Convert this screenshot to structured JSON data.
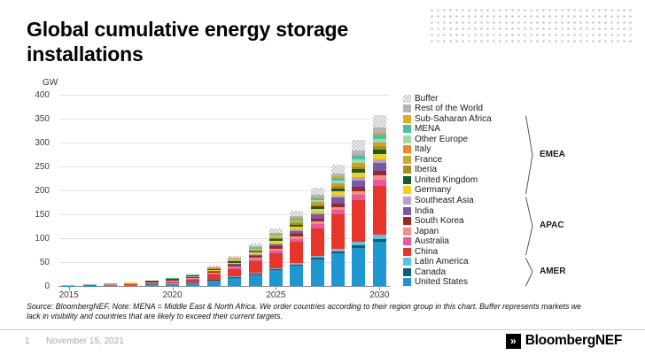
{
  "slide": {
    "title_line1": "Global cumulative energy storage",
    "title_line2": "installations",
    "source_line1": "Source: BloombergNEF. Note: MENA = Middle East & North Africa. We order countries according to their region group in this chart. Buffer represents markets we",
    "source_line2": "lack in visibility and countries that are likely to exceed their current targets.",
    "page_number": "1",
    "date": "November 15, 2021",
    "logo_mark": "»",
    "logo_text": "BloombergNEF"
  },
  "chart_data": {
    "type": "bar",
    "stacked": true,
    "title": "Global cumulative energy storage installations",
    "ylabel": "GW",
    "ylim": [
      0,
      400
    ],
    "yticks": [
      0,
      50,
      100,
      150,
      200,
      250,
      300,
      350,
      400
    ],
    "x": [
      2015,
      2016,
      2017,
      2018,
      2019,
      2020,
      2021,
      2022,
      2023,
      2024,
      2025,
      2026,
      2027,
      2028,
      2029,
      2030
    ],
    "xtick_labels": [
      "2015",
      "2020",
      "2025",
      "2030"
    ],
    "grid": true,
    "legend_position": "right",
    "region_groups": [
      "EMEA",
      "APAC",
      "AMER"
    ],
    "series": [
      {
        "name": "United States",
        "color": "#1e96d2",
        "region": "AMER",
        "values": [
          0.5,
          0.8,
          1.3,
          2,
          3,
          4.5,
          7.5,
          12,
          17.5,
          25,
          33,
          43,
          56,
          68,
          80,
          92
        ]
      },
      {
        "name": "Canada",
        "color": "#0e5d74",
        "region": "AMER",
        "values": [
          0,
          0,
          0.05,
          0.05,
          0.1,
          0.15,
          0.25,
          0.45,
          0.7,
          1,
          1.4,
          2,
          2.7,
          3.7,
          4.8,
          6
        ]
      },
      {
        "name": "Latin America",
        "color": "#57c4e8",
        "region": "AMER",
        "values": [
          0.05,
          0.05,
          0.1,
          0.15,
          0.25,
          0.35,
          0.6,
          1,
          1.6,
          2.3,
          3.1,
          4,
          5.2,
          6.5,
          7.8,
          9
        ]
      },
      {
        "name": "China",
        "color": "#e8352a",
        "region": "APAC",
        "values": [
          0.2,
          0.4,
          0.8,
          1.4,
          2.3,
          3.3,
          5.5,
          10,
          15.5,
          23,
          32,
          43,
          57,
          71,
          87,
          103
        ]
      },
      {
        "name": "Australia",
        "color": "#e85a9c",
        "region": "APAC",
        "values": [
          0.05,
          0.1,
          0.2,
          0.4,
          0.6,
          0.9,
          1.3,
          2,
          2.9,
          4,
          5.3,
          6.8,
          8.4,
          10,
          11.5,
          13
        ]
      },
      {
        "name": "Japan",
        "color": "#f0908a",
        "region": "APAC",
        "values": [
          0.6,
          0.7,
          0.8,
          1,
          1.2,
          1.4,
          1.7,
          2.1,
          2.6,
          3.2,
          3.9,
          4.7,
          5.6,
          6.6,
          7.8,
          9
        ]
      },
      {
        "name": "South Korea",
        "color": "#9c2824",
        "region": "APAC",
        "values": [
          0.2,
          0.3,
          0.5,
          0.9,
          1.3,
          1.6,
          2,
          2.5,
          3.1,
          3.8,
          4.5,
          5.4,
          6.3,
          7.2,
          8.1,
          9
        ]
      },
      {
        "name": "India",
        "color": "#7a58a5",
        "region": "APAC",
        "values": [
          0,
          0,
          0.05,
          0.1,
          0.2,
          0.3,
          0.5,
          1,
          1.8,
          3,
          4.5,
          6.5,
          9,
          11.7,
          14.3,
          17
        ]
      },
      {
        "name": "Southeast Asia",
        "color": "#b49fd8",
        "region": "APAC",
        "values": [
          0,
          0,
          0,
          0.05,
          0.1,
          0.15,
          0.25,
          0.45,
          0.8,
          1.3,
          1.9,
          2.7,
          3.7,
          4.8,
          5.9,
          7
        ]
      },
      {
        "name": "Germany",
        "color": "#f2d11e",
        "region": "EMEA",
        "values": [
          0.2,
          0.3,
          0.5,
          0.7,
          0.9,
          1.1,
          1.5,
          2,
          2.7,
          3.5,
          4.4,
          5.5,
          6.8,
          8.2,
          9.6,
          11
        ]
      },
      {
        "name": "United Kingdom",
        "color": "#155c31",
        "region": "EMEA",
        "values": [
          0.05,
          0.1,
          0.2,
          0.4,
          0.6,
          0.8,
          1.1,
          1.6,
          2.2,
          2.9,
          3.7,
          4.6,
          5.7,
          6.8,
          7.9,
          9
        ]
      },
      {
        "name": "Iberia",
        "color": "#ad8d1d",
        "region": "EMEA",
        "values": [
          0,
          0,
          0.05,
          0.1,
          0.15,
          0.2,
          0.35,
          0.6,
          1,
          1.5,
          2.1,
          2.9,
          3.9,
          4.9,
          6,
          7
        ]
      },
      {
        "name": "France",
        "color": "#d2a52c",
        "region": "EMEA",
        "values": [
          0,
          0,
          0.05,
          0.1,
          0.15,
          0.2,
          0.3,
          0.45,
          0.65,
          0.9,
          1.2,
          1.6,
          2.2,
          2.8,
          3.4,
          4
        ]
      },
      {
        "name": "Italy",
        "color": "#ef8b20",
        "region": "EMEA",
        "values": [
          0.05,
          0.05,
          0.1,
          0.15,
          0.2,
          0.25,
          0.35,
          0.55,
          0.85,
          1.2,
          1.6,
          2.1,
          2.8,
          3.5,
          4.2,
          5
        ]
      },
      {
        "name": "Other Europe",
        "color": "#a5d9a2",
        "region": "EMEA",
        "values": [
          0.05,
          0.1,
          0.15,
          0.2,
          0.3,
          0.4,
          0.6,
          0.9,
          1.3,
          1.8,
          2.4,
          3.1,
          4,
          5,
          6,
          7
        ]
      },
      {
        "name": "MENA",
        "color": "#46c1a4",
        "region": "EMEA",
        "values": [
          0,
          0.05,
          0.1,
          0.15,
          0.25,
          0.35,
          0.55,
          0.9,
          1.4,
          2,
          2.7,
          3.6,
          4.8,
          6.1,
          7.5,
          9
        ]
      },
      {
        "name": "Sub-Saharan Africa",
        "color": "#e3a81b",
        "region": "EMEA",
        "values": [
          0,
          0,
          0,
          0.05,
          0.1,
          0.15,
          0.25,
          0.4,
          0.6,
          0.9,
          1.2,
          1.6,
          2.2,
          2.8,
          3.4,
          4
        ]
      },
      {
        "name": "Rest of the World",
        "color": "#b4b4b4",
        "region": "",
        "values": [
          0.05,
          0.05,
          0.05,
          0.1,
          0.2,
          0.3,
          0.5,
          0.9,
          1.4,
          2,
          2.7,
          3.6,
          4.8,
          6.3,
          8.1,
          10
        ]
      },
      {
        "name": "Buffer",
        "color": "#dedede",
        "region": "",
        "pattern": "checker",
        "values": [
          0,
          0,
          0,
          0,
          0.1,
          0.55,
          1.4,
          2.6,
          4.3,
          6.6,
          8.8,
          11.8,
          14.9,
          18.8,
          22.9,
          27
        ]
      }
    ]
  }
}
